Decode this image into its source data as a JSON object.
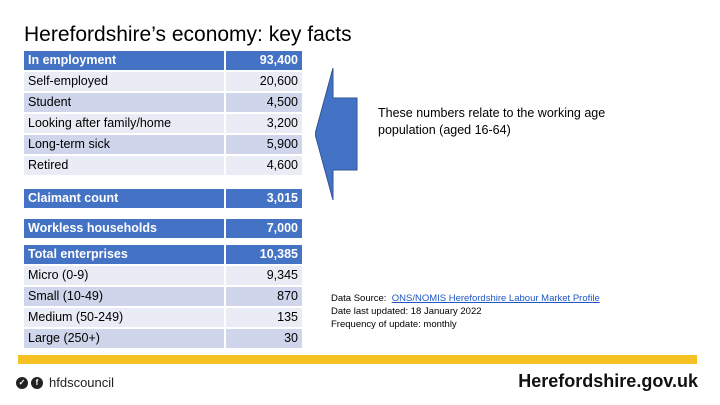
{
  "title": "Herefordshire’s economy: key facts",
  "employment": {
    "header": {
      "label": "In employment",
      "value": "93,400"
    },
    "rows": [
      {
        "label": "Self-employed",
        "value": "20,600"
      },
      {
        "label": "Student",
        "value": "4,500"
      },
      {
        "label": "Looking after family/home",
        "value": "3,200"
      },
      {
        "label": "Long-term sick",
        "value": "5,900"
      },
      {
        "label": "Retired",
        "value": "4,600"
      }
    ]
  },
  "claimant": {
    "label": "Claimant count",
    "value": "3,015"
  },
  "workless": {
    "label": "Workless households",
    "value": "7,000"
  },
  "enterprises": {
    "header": {
      "label": "Total enterprises",
      "value": "10,385"
    },
    "rows": [
      {
        "label": "Micro (0-9)",
        "value": "9,345"
      },
      {
        "label": "Small (10-49)",
        "value": "870"
      },
      {
        "label": "Medium (50-249)",
        "value": "135"
      },
      {
        "label": "Large (250+)",
        "value": "30"
      }
    ]
  },
  "note": "These numbers relate to the working age population (aged 16-64)",
  "source": {
    "prefix": "Data Source:",
    "link_text": "ONS/NOMIS Herefordshire Labour Market Profile",
    "updated": "Date last updated:  18 January 2022",
    "frequency": "Frequency of update:   monthly"
  },
  "footer": {
    "social_handle": "hfdscouncil",
    "website": "Herefordshire.gov.uk"
  },
  "colors": {
    "header_blue": "#4472c4",
    "band_yellow": "#f5c123"
  }
}
